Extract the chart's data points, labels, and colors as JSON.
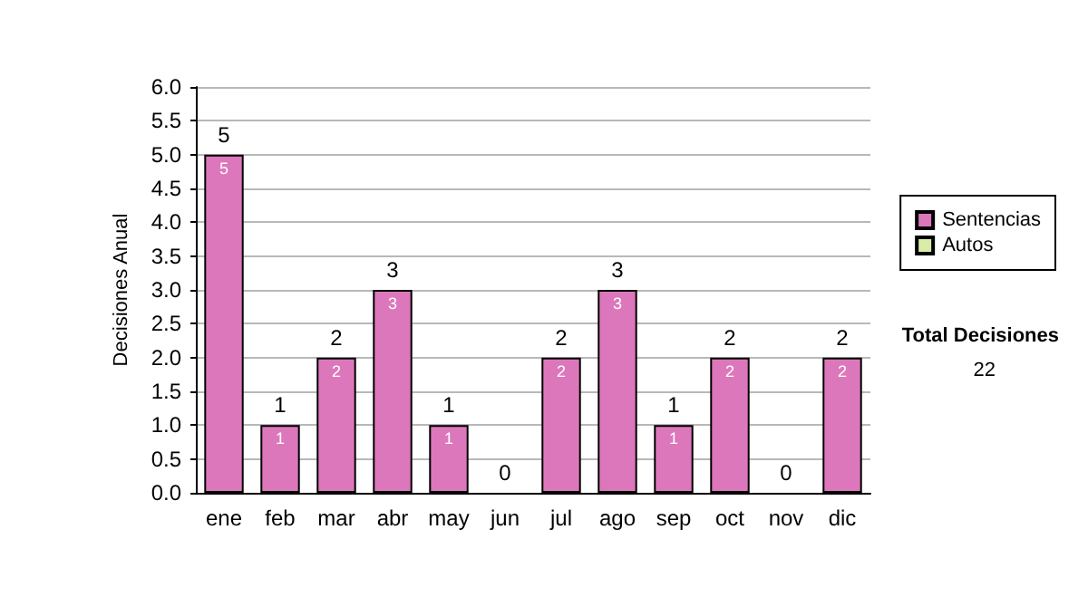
{
  "chart_data": {
    "type": "bar",
    "stacked": true,
    "ylabel": "Decisiones Anual",
    "categories": [
      "ene",
      "feb",
      "mar",
      "abr",
      "may",
      "jun",
      "jul",
      "ago",
      "sep",
      "oct",
      "nov",
      "dic"
    ],
    "series": [
      {
        "name": "Sentencias",
        "color": "#dd77bb",
        "values": [
          5,
          1,
          2,
          3,
          1,
          0,
          2,
          3,
          1,
          2,
          0,
          2
        ],
        "value_labels": [
          "5",
          "1",
          "2",
          "3",
          "1",
          null,
          "2",
          "3",
          "1",
          "2",
          null,
          "2"
        ]
      },
      {
        "name": "Autos",
        "color": "#d8eca8",
        "values": [
          0,
          0,
          0,
          0,
          0,
          0,
          0,
          0,
          0,
          0,
          0,
          0
        ]
      }
    ],
    "totals": [
      "5",
      "1",
      "2",
      "3",
      "1",
      "0",
      "2",
      "3",
      "1",
      "2",
      "0",
      "2"
    ],
    "ylim": [
      0,
      6
    ],
    "yticks": [
      {
        "value": 0,
        "label": "0.0"
      },
      {
        "value": 0.5,
        "label": "0.5"
      },
      {
        "value": 1,
        "label": "1.0"
      },
      {
        "value": 1.5,
        "label": "1.5"
      },
      {
        "value": 2,
        "label": "2.0"
      },
      {
        "value": 2.5,
        "label": "2.5"
      },
      {
        "value": 3,
        "label": "3.0"
      },
      {
        "value": 3.5,
        "label": "3.5"
      },
      {
        "value": 4,
        "label": "4.0"
      },
      {
        "value": 4.5,
        "label": "4.5"
      },
      {
        "value": 5,
        "label": "5.0"
      },
      {
        "value": 5.5,
        "label": "5.5"
      },
      {
        "value": 6,
        "label": "6.0"
      }
    ],
    "grid": "y",
    "legend": "right",
    "annotations": [
      "Total Decisiones",
      "22"
    ]
  }
}
